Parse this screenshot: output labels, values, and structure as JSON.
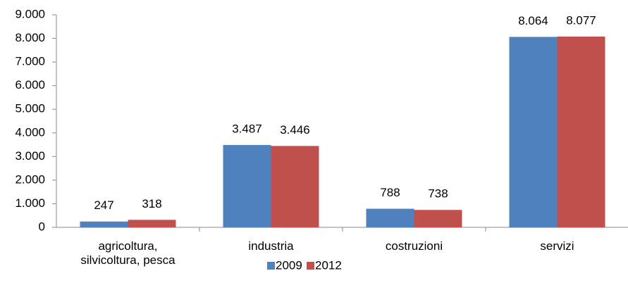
{
  "chart_data": {
    "type": "bar",
    "categories": [
      "agricoltura, silvicoltura, pesca",
      "industria",
      "costruzioni",
      "servizi"
    ],
    "series": [
      {
        "name": "2009",
        "color": "#4f81bd",
        "values": [
          247,
          3487,
          788,
          8064
        ],
        "value_labels": [
          "247",
          "3.487",
          "788",
          "8.064"
        ]
      },
      {
        "name": "2012",
        "color": "#c0504d",
        "values": [
          318,
          3446,
          738,
          8077
        ],
        "value_labels": [
          "318",
          "3.446",
          "738",
          "8.077"
        ]
      }
    ],
    "ylim": [
      0,
      9000
    ],
    "yticks": [
      0,
      {
        "value": 1000,
        "label": "1.000"
      },
      {
        "value": 2000,
        "label": "2.000"
      },
      {
        "value": 3000,
        "label": "3.000"
      },
      {
        "value": 4000,
        "label": "4.000"
      },
      {
        "value": 5000,
        "label": "5.000"
      },
      {
        "value": 6000,
        "label": "6.000"
      },
      {
        "value": 7000,
        "label": "7.000"
      },
      {
        "value": 8000,
        "label": "8.000"
      },
      {
        "value": 9000,
        "label": "9.000"
      }
    ],
    "grid": false,
    "legend": "bottom"
  }
}
